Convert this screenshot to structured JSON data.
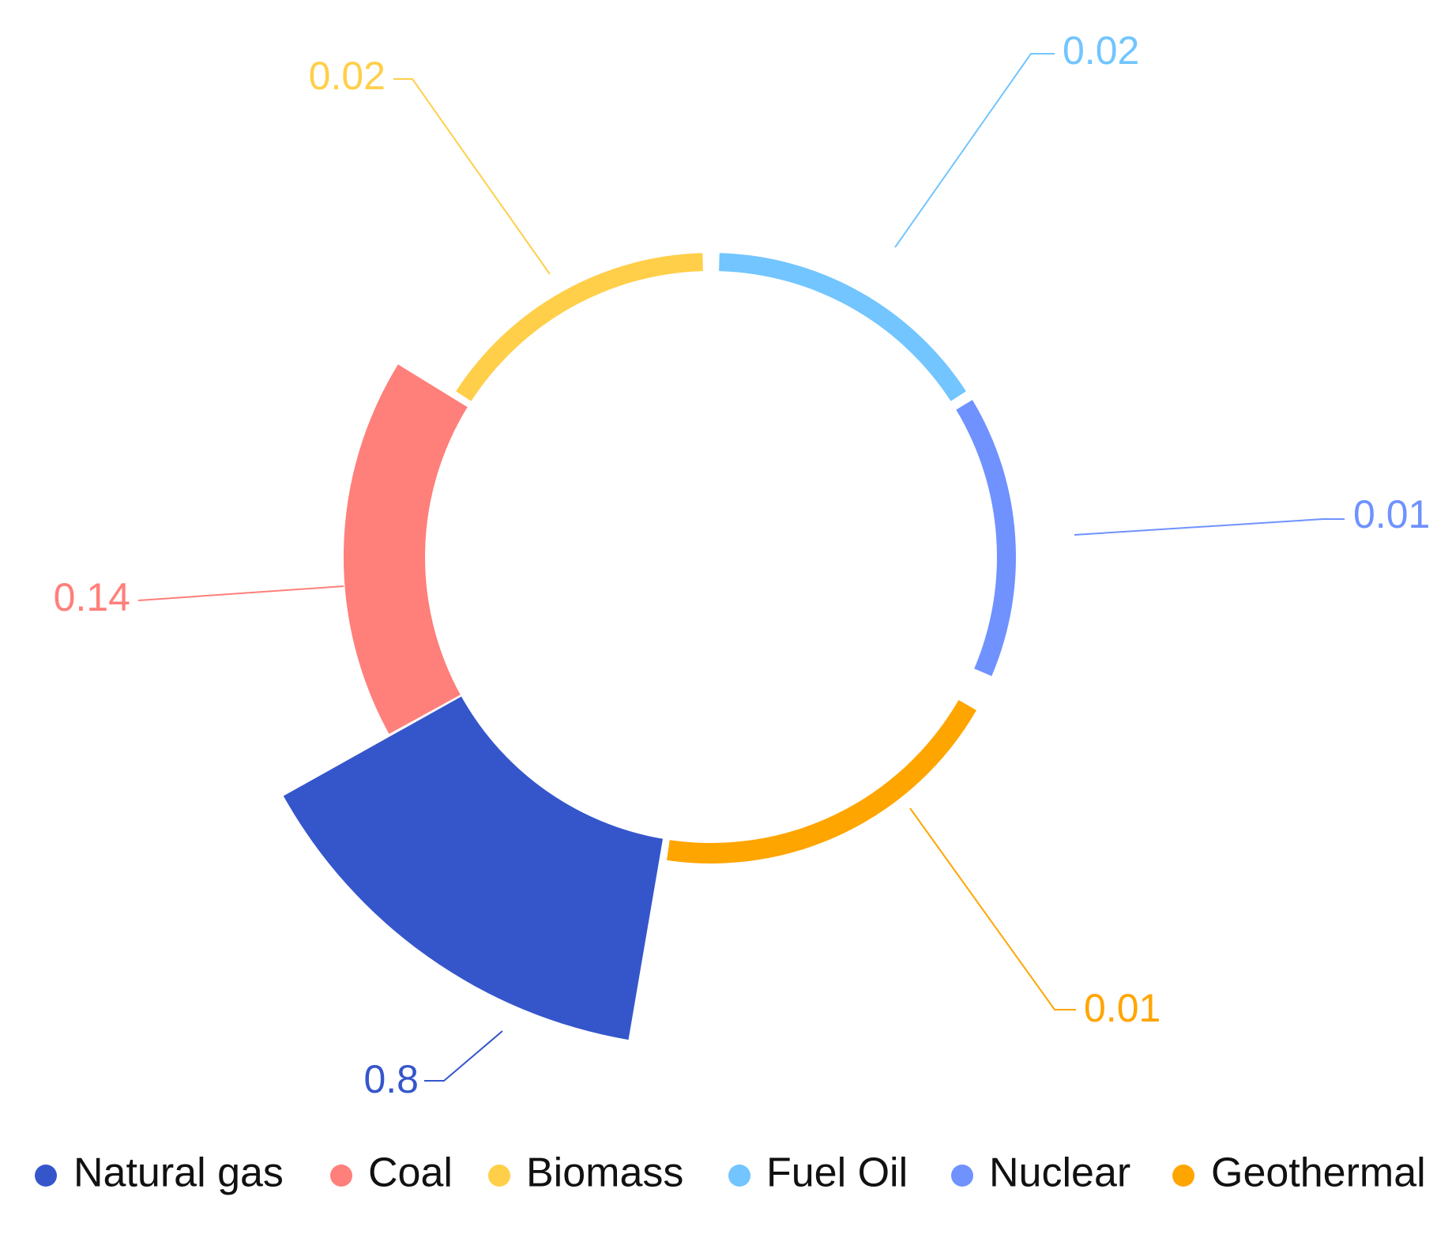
{
  "chart_data": {
    "type": "pie",
    "variant": "rose-donut",
    "series": [
      {
        "name": "Natural gas",
        "value": 0.8,
        "label": "0.8",
        "color": "#3556CB"
      },
      {
        "name": "Coal",
        "value": 0.14,
        "label": "0.14",
        "color": "#FF7F7A"
      },
      {
        "name": "Biomass",
        "value": 0.02,
        "label": "0.02",
        "color": "#FFCF4A"
      },
      {
        "name": "Fuel Oil",
        "value": 0.02,
        "label": "0.02",
        "color": "#72C5FF"
      },
      {
        "name": "Nuclear",
        "value": 0.01,
        "label": "0.01",
        "color": "#6F92FF"
      },
      {
        "name": "Geothermal",
        "value": 0.01,
        "label": "0.01",
        "color": "#FFA500"
      }
    ],
    "legend": {
      "placement": "bottom",
      "items": [
        "Natural gas",
        "Coal",
        "Biomass",
        "Fuel Oil",
        "Nuclear",
        "Geothermal"
      ]
    }
  }
}
